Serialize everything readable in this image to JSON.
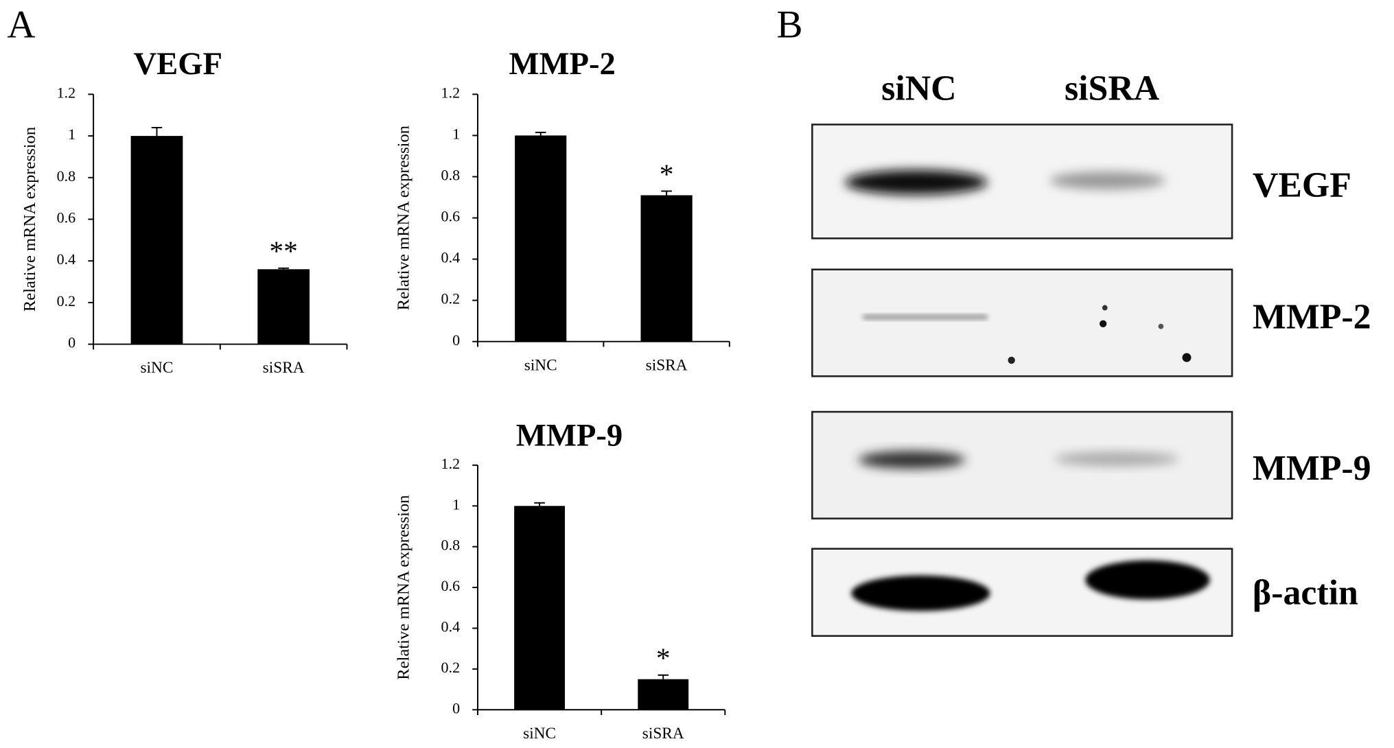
{
  "panel_labels": [
    "A",
    "B"
  ],
  "chart_data": [
    {
      "type": "bar",
      "title": "VEGF",
      "ylabel": "Relative mRNA expression",
      "categories": [
        "siNC",
        "siSRA"
      ],
      "values": [
        1.0,
        0.36
      ],
      "errors": [
        0.04,
        0.005
      ],
      "significance": [
        null,
        "**"
      ],
      "color": "#000000",
      "ylim": [
        0,
        1.2
      ],
      "yticks": [
        0,
        0.2,
        0.4,
        0.6,
        0.8,
        1,
        1.2
      ]
    },
    {
      "type": "bar",
      "title": "MMP-2",
      "ylabel": "Relative mRNA expression",
      "categories": [
        "siNC",
        "siSRA"
      ],
      "values": [
        1.0,
        0.71
      ],
      "errors": [
        0.015,
        0.02
      ],
      "significance": [
        null,
        "*"
      ],
      "color": "#000000",
      "ylim": [
        0,
        1.2
      ],
      "yticks": [
        0,
        0.2,
        0.4,
        0.6,
        0.8,
        1,
        1.2
      ]
    },
    {
      "type": "bar",
      "title": "MMP-9",
      "ylabel": "Relative mRNA expression",
      "categories": [
        "siNC",
        "siSRA"
      ],
      "values": [
        1.0,
        0.15
      ],
      "errors": [
        0.015,
        0.02
      ],
      "significance": [
        null,
        "*"
      ],
      "color": "#000000",
      "ylim": [
        0,
        1.2
      ],
      "yticks": [
        0,
        0.2,
        0.4,
        0.6,
        0.8,
        1,
        1.2
      ]
    }
  ],
  "blot": {
    "lanes": [
      "siNC",
      "siSRA"
    ],
    "proteins": [
      "VEGF",
      "MMP-2",
      "MMP-9",
      "β-actin"
    ]
  }
}
